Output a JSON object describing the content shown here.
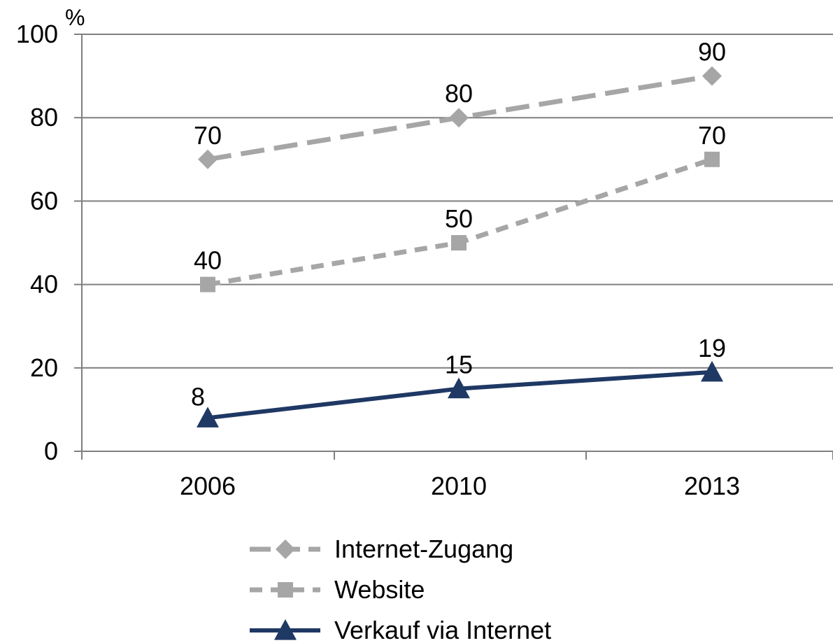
{
  "chart_data": {
    "type": "line",
    "title": "",
    "xlabel": "",
    "ylabel": "",
    "y_unit": "%",
    "categories": [
      "2006",
      "2010",
      "2013"
    ],
    "ylim": [
      0,
      100
    ],
    "yticks": [
      "0",
      "20",
      "40",
      "60",
      "80",
      "100"
    ],
    "grid": true,
    "legend_position": "bottom",
    "series": [
      {
        "name": "Internet-Zugang",
        "values": [
          70,
          80,
          90
        ],
        "color": "#a6a6a6",
        "marker": "diamond",
        "line_style": "long-dash"
      },
      {
        "name": "Website",
        "values": [
          40,
          50,
          70
        ],
        "color": "#a6a6a6",
        "marker": "square",
        "line_style": "short-dash"
      },
      {
        "name": "Verkauf via Internet",
        "values": [
          8,
          15,
          19
        ],
        "color": "#1f3864",
        "marker": "triangle",
        "line_style": "solid"
      }
    ]
  }
}
